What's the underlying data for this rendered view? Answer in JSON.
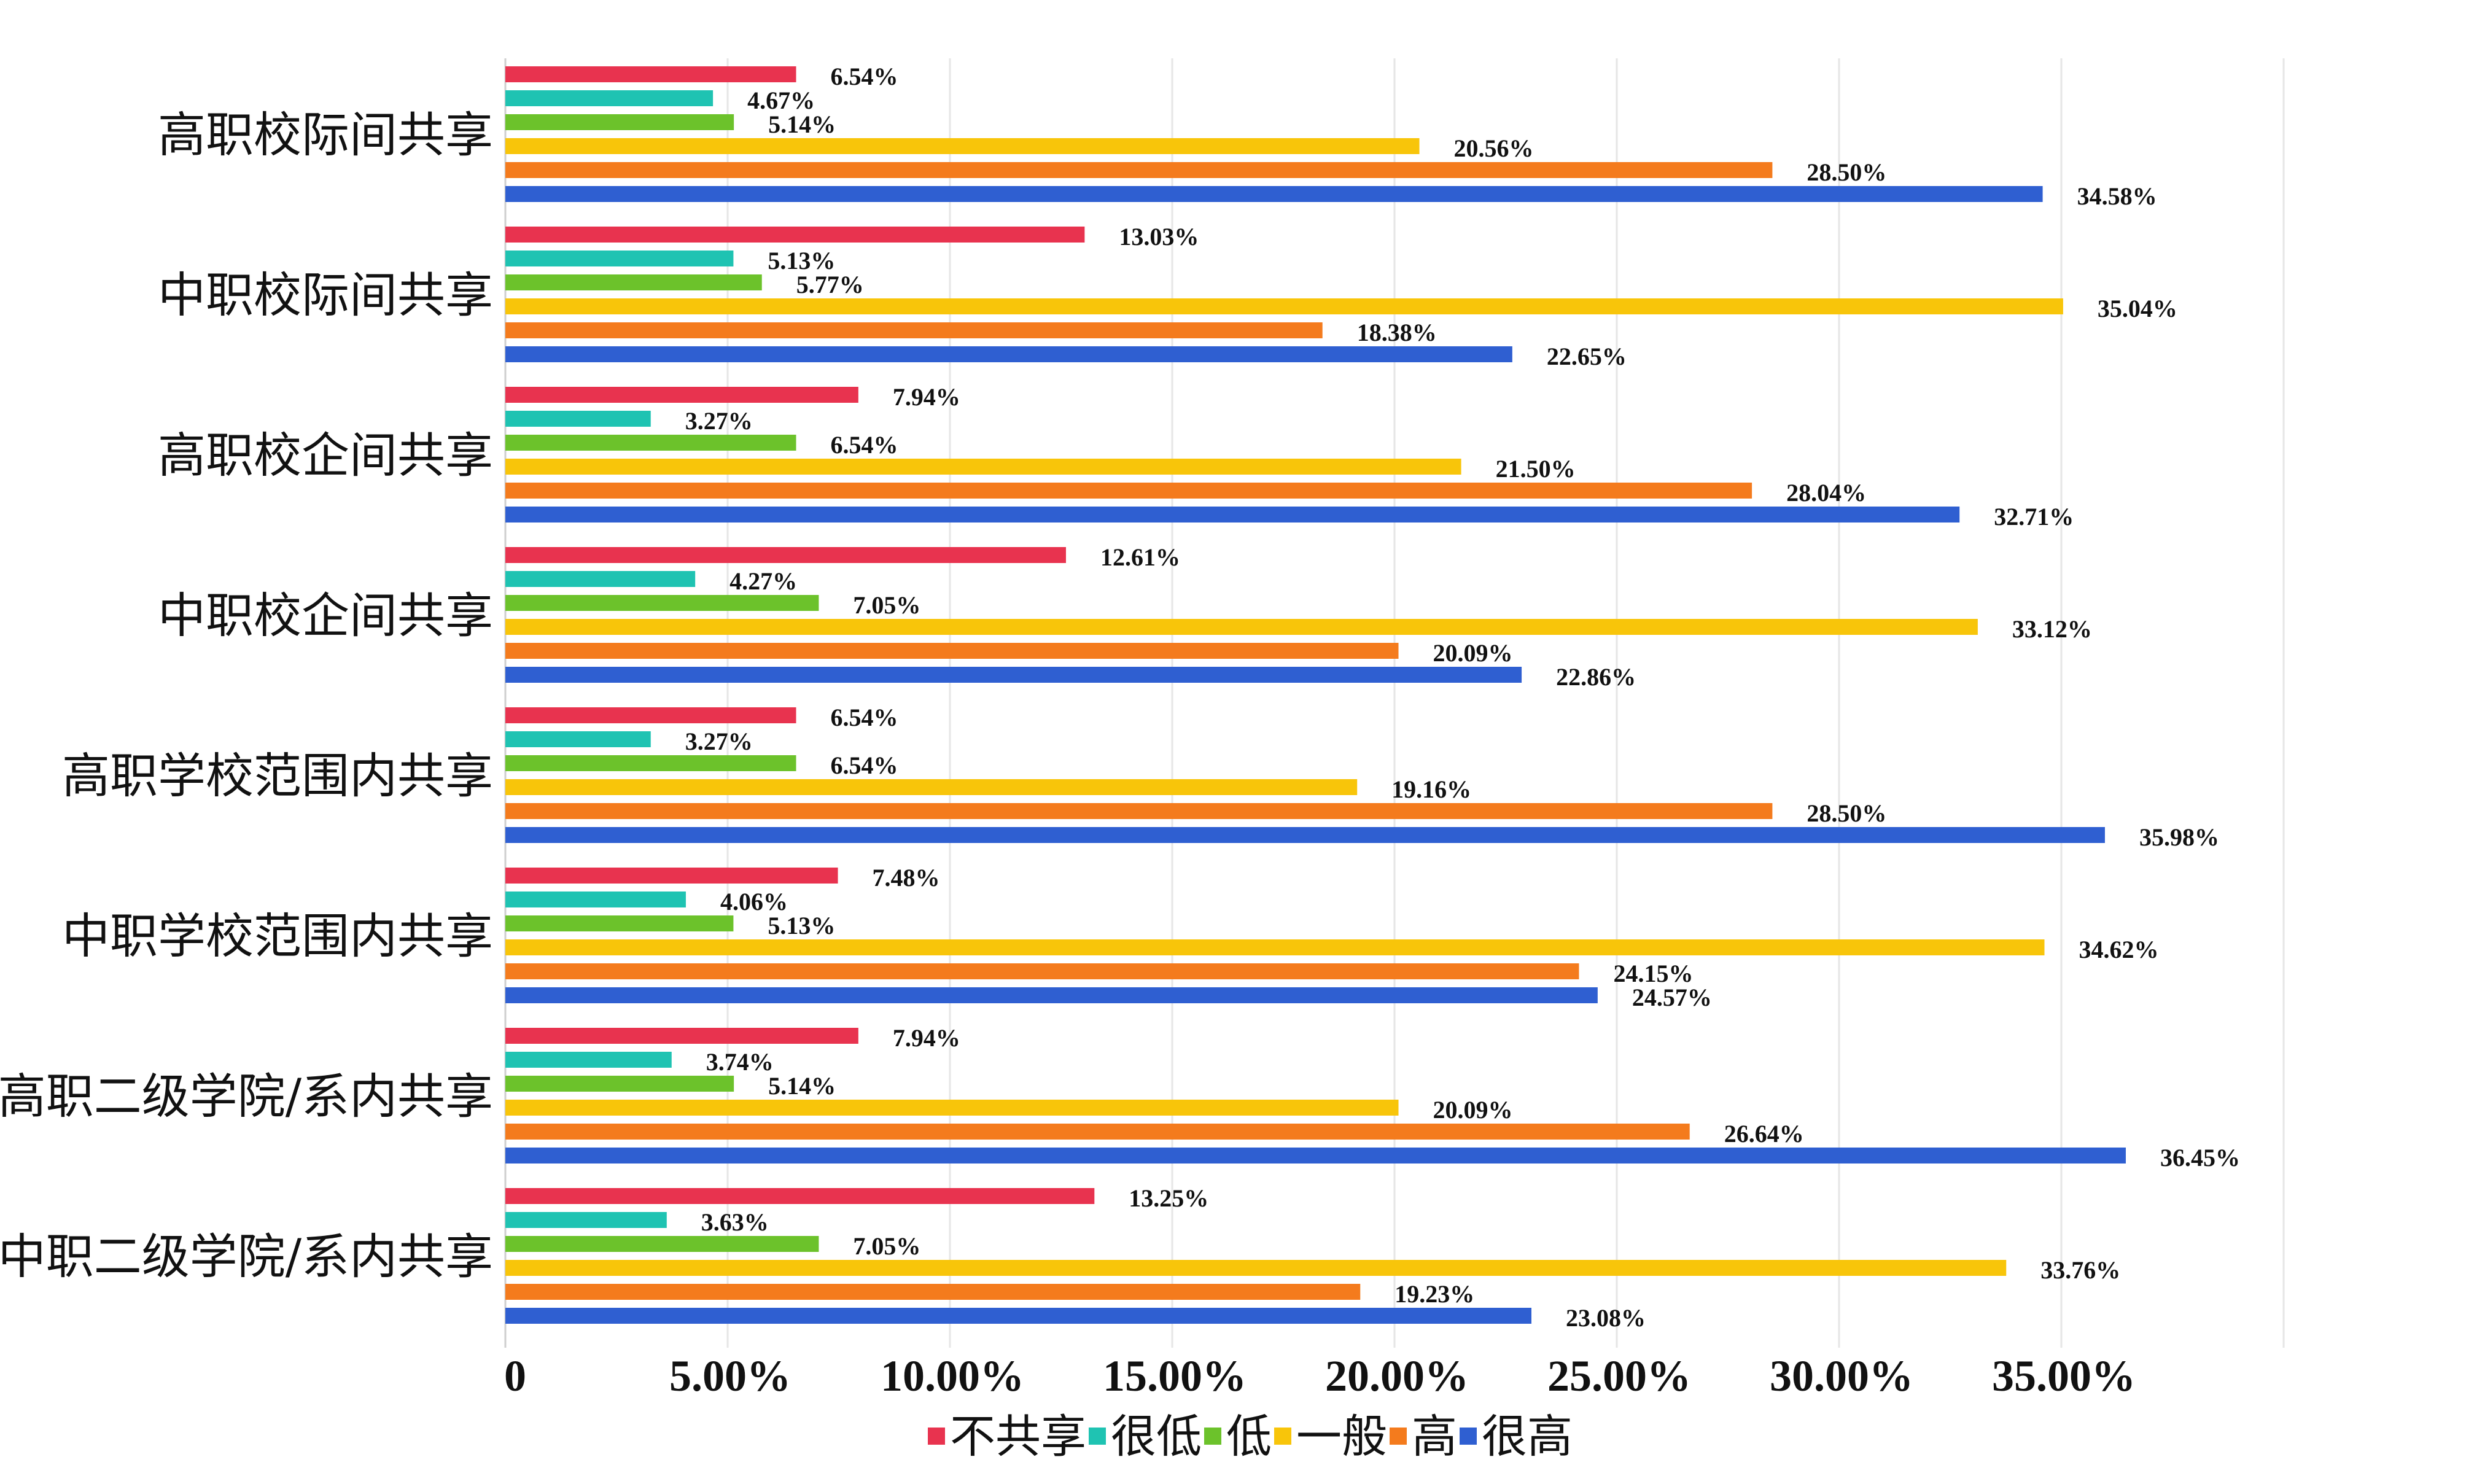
{
  "chart_data": {
    "type": "bar",
    "orientation": "horizontal",
    "categories": [
      "高职校际间共享",
      "中职校际间共享",
      "高职校企间共享",
      "中职校企间共享",
      "高职学校范围内共享",
      "中职学校范围内共享",
      "高职二级学院/系内共享",
      "中职二级学院/系内共享"
    ],
    "series": [
      {
        "name": "不共享",
        "color": "#e8334f",
        "values": [
          6.54,
          13.03,
          7.94,
          12.61,
          6.54,
          7.48,
          7.94,
          13.25
        ]
      },
      {
        "name": "很低",
        "color": "#1fc3b2",
        "values": [
          4.67,
          5.13,
          3.27,
          4.27,
          3.27,
          4.06,
          3.74,
          3.63
        ]
      },
      {
        "name": "低",
        "color": "#6cc22b",
        "values": [
          5.14,
          5.77,
          6.54,
          7.05,
          6.54,
          5.13,
          5.14,
          7.05
        ]
      },
      {
        "name": "一般",
        "color": "#f8c50a",
        "values": [
          20.56,
          35.04,
          21.5,
          33.12,
          19.16,
          34.62,
          20.09,
          33.76
        ]
      },
      {
        "name": "高",
        "color": "#f47b1d",
        "values": [
          28.5,
          18.38,
          28.04,
          20.09,
          28.5,
          24.15,
          26.64,
          19.23
        ]
      },
      {
        "name": "很高",
        "color": "#2f5fd1",
        "values": [
          34.58,
          22.65,
          32.71,
          22.86,
          35.98,
          24.57,
          36.45,
          23.08
        ]
      }
    ],
    "value_format": "percent_2dp",
    "x_ticks": [
      0,
      5,
      10,
      15,
      20,
      25,
      30,
      35
    ],
    "x_tick_labels": [
      "0",
      "5.00%",
      "10.00%",
      "15.00%",
      "20.00%",
      "25.00%",
      "30.00%",
      "35.00%"
    ],
    "xlim": [
      0,
      40
    ],
    "grid": "vertical",
    "legend": "bottom",
    "data_labels": true,
    "title": "",
    "xlabel": "",
    "ylabel": ""
  }
}
